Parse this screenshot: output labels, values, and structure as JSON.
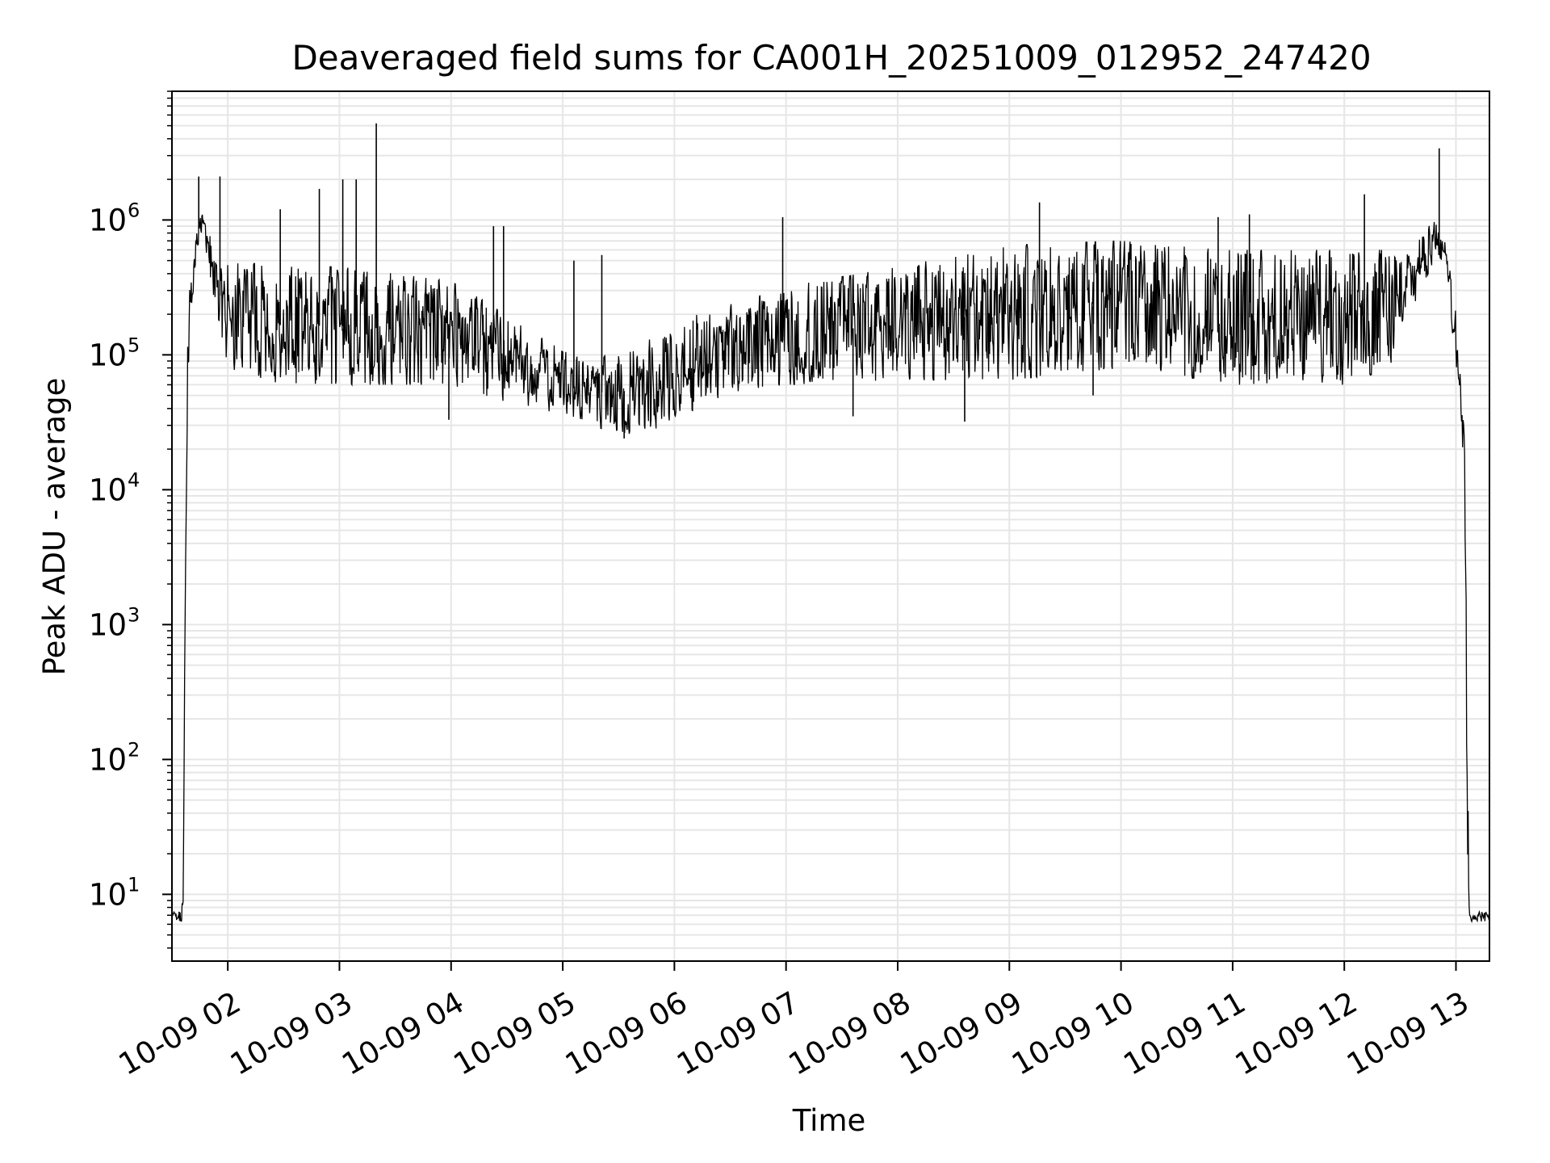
{
  "chart_data": {
    "type": "line",
    "title": "Deaveraged field sums for CA001H_20251009_012952_247420",
    "xlabel": "Time",
    "ylabel": "Peak ADU - average",
    "yscale": "log",
    "ylim": [
      3.2,
      9000000
    ],
    "xlim_hours": [
      1.5,
      13.3
    ],
    "grid": true,
    "line_color": "#000000",
    "grid_color": "#e6e6e6",
    "x_ticks": [
      {
        "value": 2,
        "label": "10-09 02"
      },
      {
        "value": 3,
        "label": "10-09 03"
      },
      {
        "value": 4,
        "label": "10-09 04"
      },
      {
        "value": 5,
        "label": "10-09 05"
      },
      {
        "value": 6,
        "label": "10-09 06"
      },
      {
        "value": 7,
        "label": "10-09 07"
      },
      {
        "value": 8,
        "label": "10-09 08"
      },
      {
        "value": 9,
        "label": "10-09 09"
      },
      {
        "value": 10,
        "label": "10-09 10"
      },
      {
        "value": 11,
        "label": "10-09 11"
      },
      {
        "value": 12,
        "label": "10-09 12"
      },
      {
        "value": 13,
        "label": "10-09 13"
      }
    ],
    "y_ticks": [
      {
        "value": 10,
        "base": "10",
        "exp": "1"
      },
      {
        "value": 100,
        "base": "10",
        "exp": "2"
      },
      {
        "value": 1000,
        "base": "10",
        "exp": "3"
      },
      {
        "value": 10000,
        "base": "10",
        "exp": "4"
      },
      {
        "value": 100000,
        "base": "10",
        "exp": "5"
      },
      {
        "value": 1000000,
        "base": "10",
        "exp": "6"
      }
    ],
    "series": [
      {
        "name": "Deaveraged field sums",
        "envelope": [
          {
            "t": 1.5,
            "low": 6.3,
            "high": 7.5
          },
          {
            "t": 1.58,
            "low": 6.3,
            "high": 7.5
          },
          {
            "t": 1.6,
            "low": 6.5,
            "high": 12
          },
          {
            "t": 1.62,
            "low": 2000,
            "high": 20000
          },
          {
            "t": 1.64,
            "low": 50000,
            "high": 200000
          },
          {
            "t": 1.67,
            "low": 150000,
            "high": 400000
          },
          {
            "t": 1.7,
            "low": 400000,
            "high": 700000
          },
          {
            "t": 1.75,
            "low": 800000,
            "high": 1200000
          },
          {
            "t": 1.8,
            "low": 600000,
            "high": 1100000
          },
          {
            "t": 1.85,
            "low": 350000,
            "high": 700000
          },
          {
            "t": 1.9,
            "low": 200000,
            "high": 500000
          },
          {
            "t": 2.0,
            "low": 80000,
            "high": 500000
          },
          {
            "t": 2.5,
            "low": 60000,
            "high": 450000
          },
          {
            "t": 3.0,
            "low": 60000,
            "high": 450000
          },
          {
            "t": 3.5,
            "low": 60000,
            "high": 400000
          },
          {
            "t": 4.0,
            "low": 60000,
            "high": 350000
          },
          {
            "t": 4.3,
            "low": 50000,
            "high": 250000
          },
          {
            "t": 4.7,
            "low": 40000,
            "high": 150000
          },
          {
            "t": 5.2,
            "low": 30000,
            "high": 90000
          },
          {
            "t": 5.7,
            "low": 25000,
            "high": 120000
          },
          {
            "t": 6.2,
            "low": 40000,
            "high": 200000
          },
          {
            "t": 6.6,
            "low": 55000,
            "high": 250000
          },
          {
            "t": 7.0,
            "low": 60000,
            "high": 320000
          },
          {
            "t": 8.0,
            "low": 65000,
            "high": 450000
          },
          {
            "t": 9.0,
            "low": 65000,
            "high": 650000
          },
          {
            "t": 10.0,
            "low": 80000,
            "high": 700000
          },
          {
            "t": 10.5,
            "low": 70000,
            "high": 650000
          },
          {
            "t": 11.0,
            "low": 60000,
            "high": 600000
          },
          {
            "t": 12.0,
            "low": 60000,
            "high": 600000
          },
          {
            "t": 12.4,
            "low": 80000,
            "high": 600000
          },
          {
            "t": 12.6,
            "low": 200000,
            "high": 600000
          },
          {
            "t": 12.8,
            "low": 500000,
            "high": 1000000
          },
          {
            "t": 12.9,
            "low": 500000,
            "high": 900000
          },
          {
            "t": 13.0,
            "low": 80000,
            "high": 200000
          },
          {
            "t": 13.05,
            "low": 30000,
            "high": 60000
          },
          {
            "t": 13.08,
            "low": 5000,
            "high": 20000
          },
          {
            "t": 13.1,
            "low": 20,
            "high": 200
          },
          {
            "t": 13.12,
            "low": 6.3,
            "high": 7.5
          },
          {
            "t": 13.3,
            "low": 6.3,
            "high": 7.5
          }
        ],
        "spikes": [
          {
            "t": 1.74,
            "value": 2100000
          },
          {
            "t": 1.93,
            "value": 2100000
          },
          {
            "t": 2.47,
            "value": 1200000
          },
          {
            "t": 2.82,
            "value": 1700000
          },
          {
            "t": 3.03,
            "value": 2000000
          },
          {
            "t": 3.15,
            "value": 2000000
          },
          {
            "t": 3.33,
            "value": 5200000
          },
          {
            "t": 3.98,
            "value": 33000
          },
          {
            "t": 4.38,
            "value": 900000
          },
          {
            "t": 4.47,
            "value": 900000
          },
          {
            "t": 5.1,
            "value": 500000
          },
          {
            "t": 5.35,
            "value": 550000
          },
          {
            "t": 5.55,
            "value": 24000
          },
          {
            "t": 6.97,
            "value": 1050000
          },
          {
            "t": 7.6,
            "value": 35000
          },
          {
            "t": 8.6,
            "value": 32000
          },
          {
            "t": 9.27,
            "value": 1350000
          },
          {
            "t": 9.75,
            "value": 50000
          },
          {
            "t": 10.87,
            "value": 1050000
          },
          {
            "t": 11.15,
            "value": 1100000
          },
          {
            "t": 12.18,
            "value": 1550000
          },
          {
            "t": 12.85,
            "value": 3400000
          }
        ]
      }
    ]
  }
}
